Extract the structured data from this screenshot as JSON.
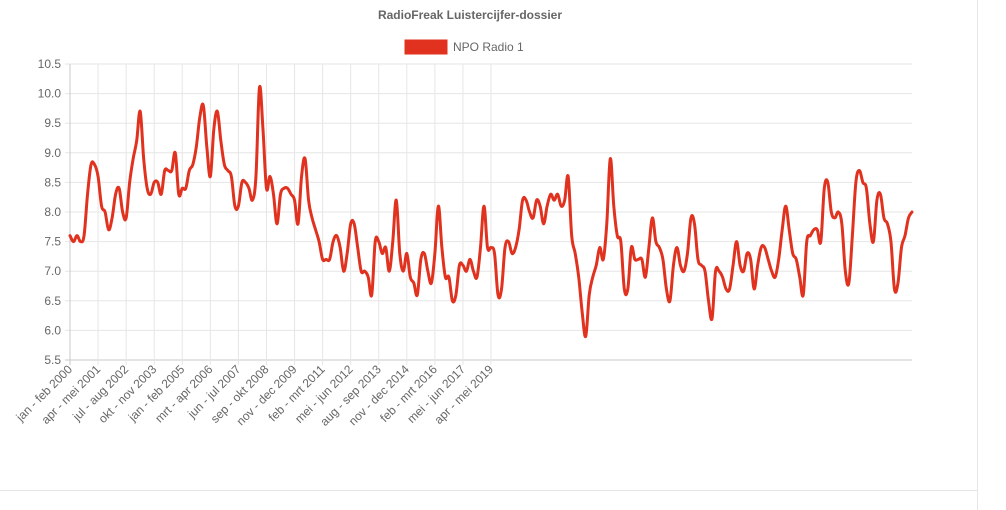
{
  "chart_data": {
    "type": "line",
    "title": "RadioFreak Luistercijfer-dossier",
    "legend_position": "top",
    "grid": true,
    "ylim": [
      5.5,
      10.5
    ],
    "y_ticks": [
      "5.5",
      "6.0",
      "6.5",
      "7.0",
      "7.5",
      "8.0",
      "8.5",
      "9.0",
      "9.5",
      "10.0",
      "10.5"
    ],
    "x_tick_labels": [
      "jan - feb 2000",
      "apr - mei 2001",
      "jul - aug 2002",
      "okt - nov 2003",
      "jan - feb 2005",
      "mrt - apr 2006",
      "jun - jul 2007",
      "sep - okt 2008",
      "nov - dec 2009",
      "feb - mrt 2011",
      "mei - jun 2012",
      "aug - sep 2013",
      "nov - dec 2014",
      "feb - mrt 2016",
      "mei - jun 2017",
      "apr - mei 2019"
    ],
    "x_tick_index": [
      0,
      8,
      16,
      24,
      32,
      40,
      48,
      56,
      64,
      72,
      80,
      88,
      96,
      104,
      112,
      120
    ],
    "series": [
      {
        "name": "NPO Radio 1",
        "color": "#e0321e",
        "values": [
          7.6,
          7.5,
          7.6,
          7.5,
          7.6,
          8.3,
          8.8,
          8.8,
          8.6,
          8.1,
          8.0,
          7.7,
          7.9,
          8.3,
          8.4,
          8.0,
          7.9,
          8.5,
          8.9,
          9.2,
          9.7,
          8.9,
          8.4,
          8.3,
          8.5,
          8.5,
          8.3,
          8.7,
          8.7,
          8.7,
          9.0,
          8.3,
          8.4,
          8.4,
          8.7,
          8.8,
          9.1,
          9.6,
          9.8,
          9.1,
          8.6,
          9.4,
          9.7,
          9.2,
          8.8,
          8.7,
          8.6,
          8.1,
          8.1,
          8.5,
          8.5,
          8.4,
          8.2,
          8.6,
          10.1,
          9.4,
          8.4,
          8.6,
          8.3,
          7.8,
          8.3,
          8.4,
          8.4,
          8.3,
          8.2,
          7.8,
          8.6,
          8.9,
          8.2,
          7.9,
          7.7,
          7.5,
          7.2,
          7.2,
          7.2,
          7.5,
          7.6,
          7.4,
          7.0,
          7.3,
          7.8,
          7.8,
          7.4,
          7.0,
          7.0,
          6.9,
          6.6,
          7.5,
          7.5,
          7.3,
          7.4,
          7.0,
          7.5,
          8.2,
          7.3,
          7.0,
          7.3,
          6.9,
          6.8,
          6.6,
          7.2,
          7.3,
          7.0,
          6.8,
          7.3,
          8.1,
          7.4,
          6.9,
          6.9,
          6.5,
          6.6,
          7.1,
          7.1,
          7.0,
          7.2,
          7.0,
          6.9,
          7.4,
          8.1,
          7.4,
          7.4,
          7.3,
          6.6,
          6.7,
          7.4,
          7.5,
          7.3,
          7.4,
          7.7,
          8.2,
          8.2,
          8.0,
          7.9,
          8.2,
          8.1,
          7.8,
          8.1,
          8.3,
          8.2,
          8.3,
          8.1,
          8.2,
          8.6,
          7.6,
          7.3,
          6.9,
          6.3,
          5.9,
          6.6,
          6.9,
          7.1,
          7.4,
          7.2,
          7.8,
          8.9,
          8.1,
          7.6,
          7.5,
          6.7,
          6.7,
          7.4,
          7.2,
          7.2,
          7.2,
          6.9,
          7.4,
          7.9,
          7.5,
          7.4,
          7.2,
          6.7,
          6.5,
          7.1,
          7.4,
          7.1,
          7.0,
          7.3,
          7.9,
          7.8,
          7.2,
          7.1,
          7.0,
          6.5,
          6.2,
          7.0,
          7.0,
          6.9,
          6.7,
          6.7,
          7.1,
          7.5,
          7.1,
          7.0,
          7.3,
          7.2,
          6.7,
          7.1,
          7.4,
          7.4,
          7.2,
          7.0,
          6.9,
          7.2,
          7.7,
          8.1,
          7.7,
          7.3,
          7.2,
          6.9,
          6.6,
          7.5,
          7.6,
          7.7,
          7.7,
          7.5,
          8.4,
          8.5,
          8.0,
          7.9,
          8.0,
          7.8,
          7.0,
          6.8,
          7.6,
          8.5,
          8.7,
          8.5,
          8.4,
          7.8,
          7.5,
          8.2,
          8.3,
          7.9,
          7.8,
          7.5,
          6.7,
          6.8,
          7.4,
          7.6,
          7.9,
          8.0
        ]
      }
    ]
  }
}
